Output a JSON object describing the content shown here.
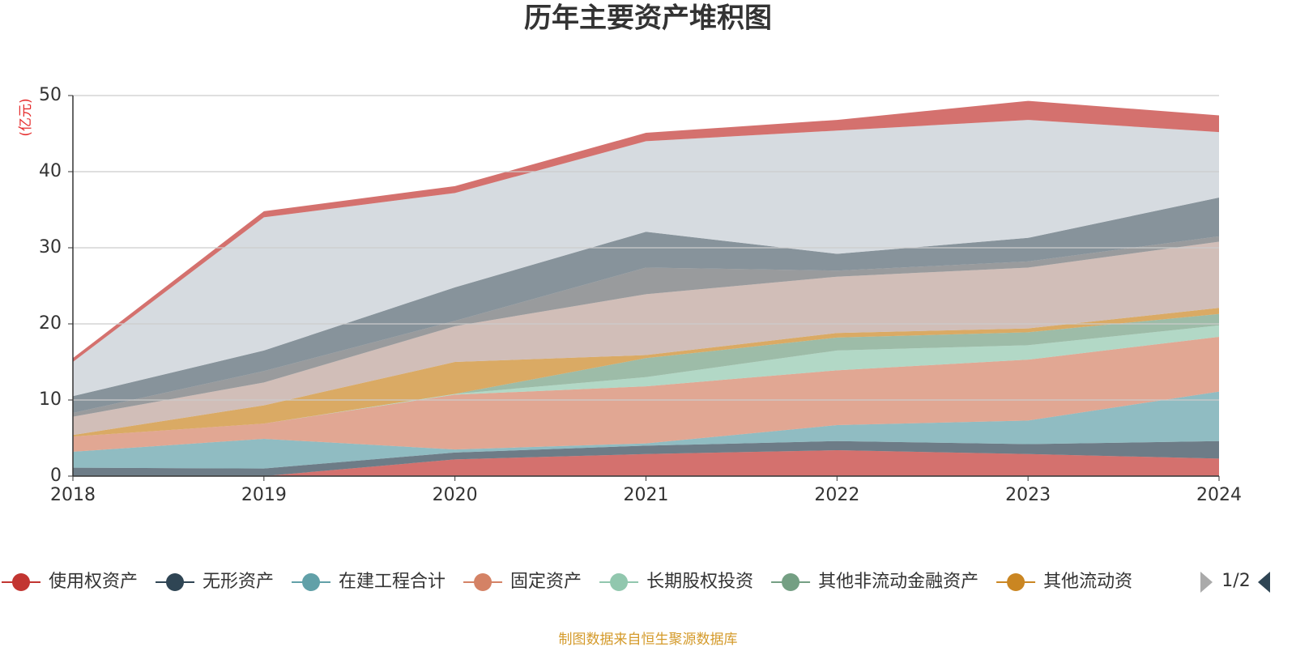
{
  "chart_data": {
    "type": "stacked_area",
    "title": "历年主要资产堆积图",
    "y_axis_label": "(亿元)",
    "source": "制图数据来自恒生聚源数据库",
    "legend_page": "1/2",
    "categories": [
      "2018",
      "2019",
      "2020",
      "2021",
      "2022",
      "2023",
      "2024"
    ],
    "ylim": [
      0,
      50
    ],
    "yticks": [
      0,
      10,
      20,
      30,
      40,
      50
    ],
    "grid": true,
    "series": [
      {
        "name": "使用权资产",
        "color": "#c23531",
        "values": [
          0,
          0,
          2.2,
          2.9,
          3.4,
          2.9,
          2.3
        ]
      },
      {
        "name": "无形资产",
        "color": "#2f4554",
        "values": [
          1.1,
          1.0,
          0.9,
          1.1,
          1.2,
          1.3,
          2.3
        ]
      },
      {
        "name": "在建工程合计",
        "color": "#61a0a8",
        "values": [
          2.1,
          3.9,
          0.4,
          0.3,
          2.1,
          3.1,
          6.5
        ]
      },
      {
        "name": "固定资产",
        "color": "#d48265",
        "values": [
          2.0,
          2.0,
          7.2,
          7.5,
          7.2,
          8.0,
          7.2
        ]
      },
      {
        "name": "长期股权投资",
        "color": "#91c7ae",
        "values": [
          0,
          0,
          0.1,
          1.2,
          2.6,
          1.9,
          1.5
        ]
      },
      {
        "name": "其他非流动金融资产",
        "color": "#749f83",
        "values": [
          0,
          0,
          0,
          2.5,
          1.7,
          1.7,
          1.5
        ]
      },
      {
        "name": "其他流动资",
        "color": "#ca8622",
        "values": [
          0.2,
          2.4,
          4.2,
          0.4,
          0.6,
          0.5,
          0.8
        ]
      },
      {
        "color": "#bda29a",
        "values": [
          2.4,
          3.0,
          4.7,
          8.0,
          7.4,
          8.0,
          8.7
        ]
      },
      {
        "color": "#6e7074",
        "values": [
          0.5,
          1.5,
          0.7,
          3.5,
          0.8,
          0.8,
          0.7
        ]
      },
      {
        "color": "#546570",
        "values": [
          2.2,
          2.7,
          4.4,
          4.7,
          2.2,
          3.1,
          5.1
        ]
      },
      {
        "color": "#c4ccd3",
        "values": [
          4.5,
          17.5,
          12.4,
          11.9,
          16.2,
          15.5,
          8.6
        ]
      },
      {
        "color": "#c23531",
        "values": [
          0.5,
          0.8,
          0.9,
          1.1,
          1.4,
          2.5,
          2.2
        ]
      }
    ]
  }
}
